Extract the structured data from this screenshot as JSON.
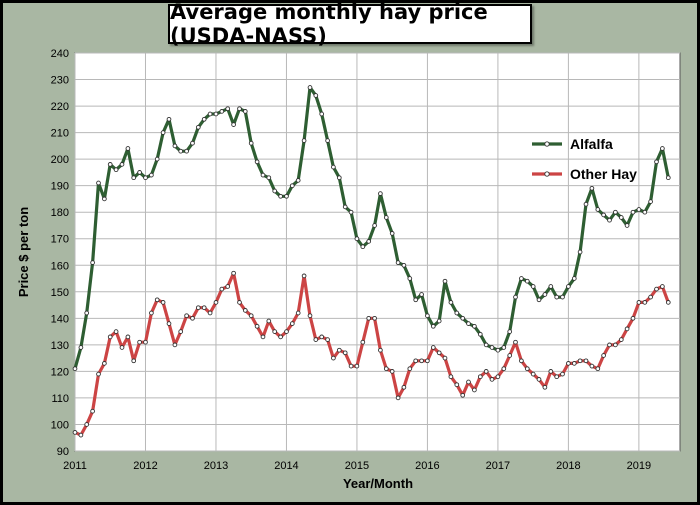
{
  "chart_data": {
    "type": "line",
    "title": "Average monthly hay price (USDA-NASS)",
    "xlabel": "Year/Month",
    "ylabel": "Price $ per ton",
    "ylim": [
      90,
      240
    ],
    "yticks": [
      90,
      100,
      110,
      120,
      130,
      140,
      150,
      160,
      170,
      180,
      190,
      200,
      210,
      220,
      230,
      240
    ],
    "xlim": [
      "2011-01",
      "2019-08"
    ],
    "xticks": [
      "2011",
      "2012",
      "2013",
      "2014",
      "2015",
      "2016",
      "2017",
      "2018",
      "2019"
    ],
    "grid": true,
    "legend": "right",
    "series": [
      {
        "name": "Alfalfa",
        "color": "#2e5e32",
        "start": "2011-01",
        "values": [
          121,
          129,
          142,
          161,
          191,
          185,
          198,
          196,
          198,
          204,
          193,
          195,
          193,
          194,
          200,
          210,
          215,
          205,
          203,
          203,
          206,
          212,
          215,
          217,
          217,
          218,
          219,
          213,
          219,
          218,
          206,
          199,
          194,
          193,
          188,
          186,
          186,
          190,
          192,
          207,
          227,
          224,
          217,
          207,
          197,
          193,
          182,
          180,
          170,
          167,
          169,
          175,
          187,
          178,
          172,
          161,
          160,
          155,
          147,
          149,
          141,
          137,
          139,
          154,
          146,
          142,
          140,
          138,
          137,
          134,
          130,
          129,
          128,
          129,
          135,
          148,
          155,
          154,
          152,
          147,
          149,
          152,
          148,
          148,
          152,
          155,
          165,
          183,
          189,
          181,
          179,
          177,
          180,
          178,
          175,
          180,
          181,
          180,
          184,
          199,
          204,
          193
        ]
      },
      {
        "name": "Other Hay",
        "color": "#cc4444",
        "start": "2011-01",
        "values": [
          97,
          96,
          100,
          105,
          119,
          123,
          133,
          135,
          129,
          133,
          124,
          131,
          131,
          142,
          147,
          146,
          138,
          130,
          135,
          141,
          140,
          144,
          144,
          142,
          146,
          151,
          152,
          157,
          146,
          143,
          141,
          137,
          133,
          139,
          135,
          133,
          135,
          138,
          142,
          156,
          141,
          132,
          133,
          132,
          125,
          128,
          127,
          122,
          122,
          131,
          140,
          140,
          128,
          121,
          120,
          110,
          114,
          121,
          124,
          124,
          124,
          129,
          127,
          125,
          118,
          115,
          111,
          116,
          113,
          118,
          120,
          117,
          118,
          121,
          126,
          131,
          124,
          121,
          119,
          117,
          114,
          120,
          118,
          119,
          123,
          123,
          124,
          124,
          122,
          121,
          126,
          130,
          130,
          132,
          136,
          140,
          146,
          146,
          148,
          151,
          152,
          146
        ]
      }
    ]
  }
}
